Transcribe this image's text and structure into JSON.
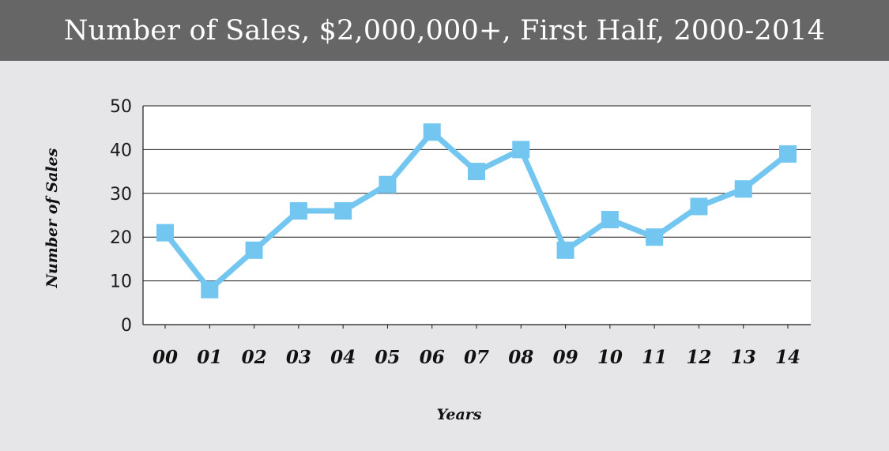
{
  "chart_data": {
    "type": "line",
    "title": "Number of Sales, $2,000,000+, First Half, 2000-2014",
    "xlabel": "Years",
    "ylabel": "Number of Sales",
    "categories": [
      "00",
      "01",
      "02",
      "03",
      "04",
      "05",
      "06",
      "07",
      "08",
      "09",
      "10",
      "11",
      "12",
      "13",
      "14"
    ],
    "series": [
      {
        "values": [
          21,
          8,
          17,
          26,
          26,
          32,
          44,
          35,
          40,
          17,
          24,
          20,
          27,
          31,
          39
        ]
      }
    ],
    "ylim": [
      0,
      50
    ],
    "yticks": [
      "0",
      "10",
      "20",
      "30",
      "40",
      "50"
    ],
    "grid": true,
    "legend": "none",
    "colors": {
      "series": "#73c6ef",
      "title_bar": "#666666",
      "background": "#e6e6e8",
      "plot_background": "#ffffff"
    }
  }
}
